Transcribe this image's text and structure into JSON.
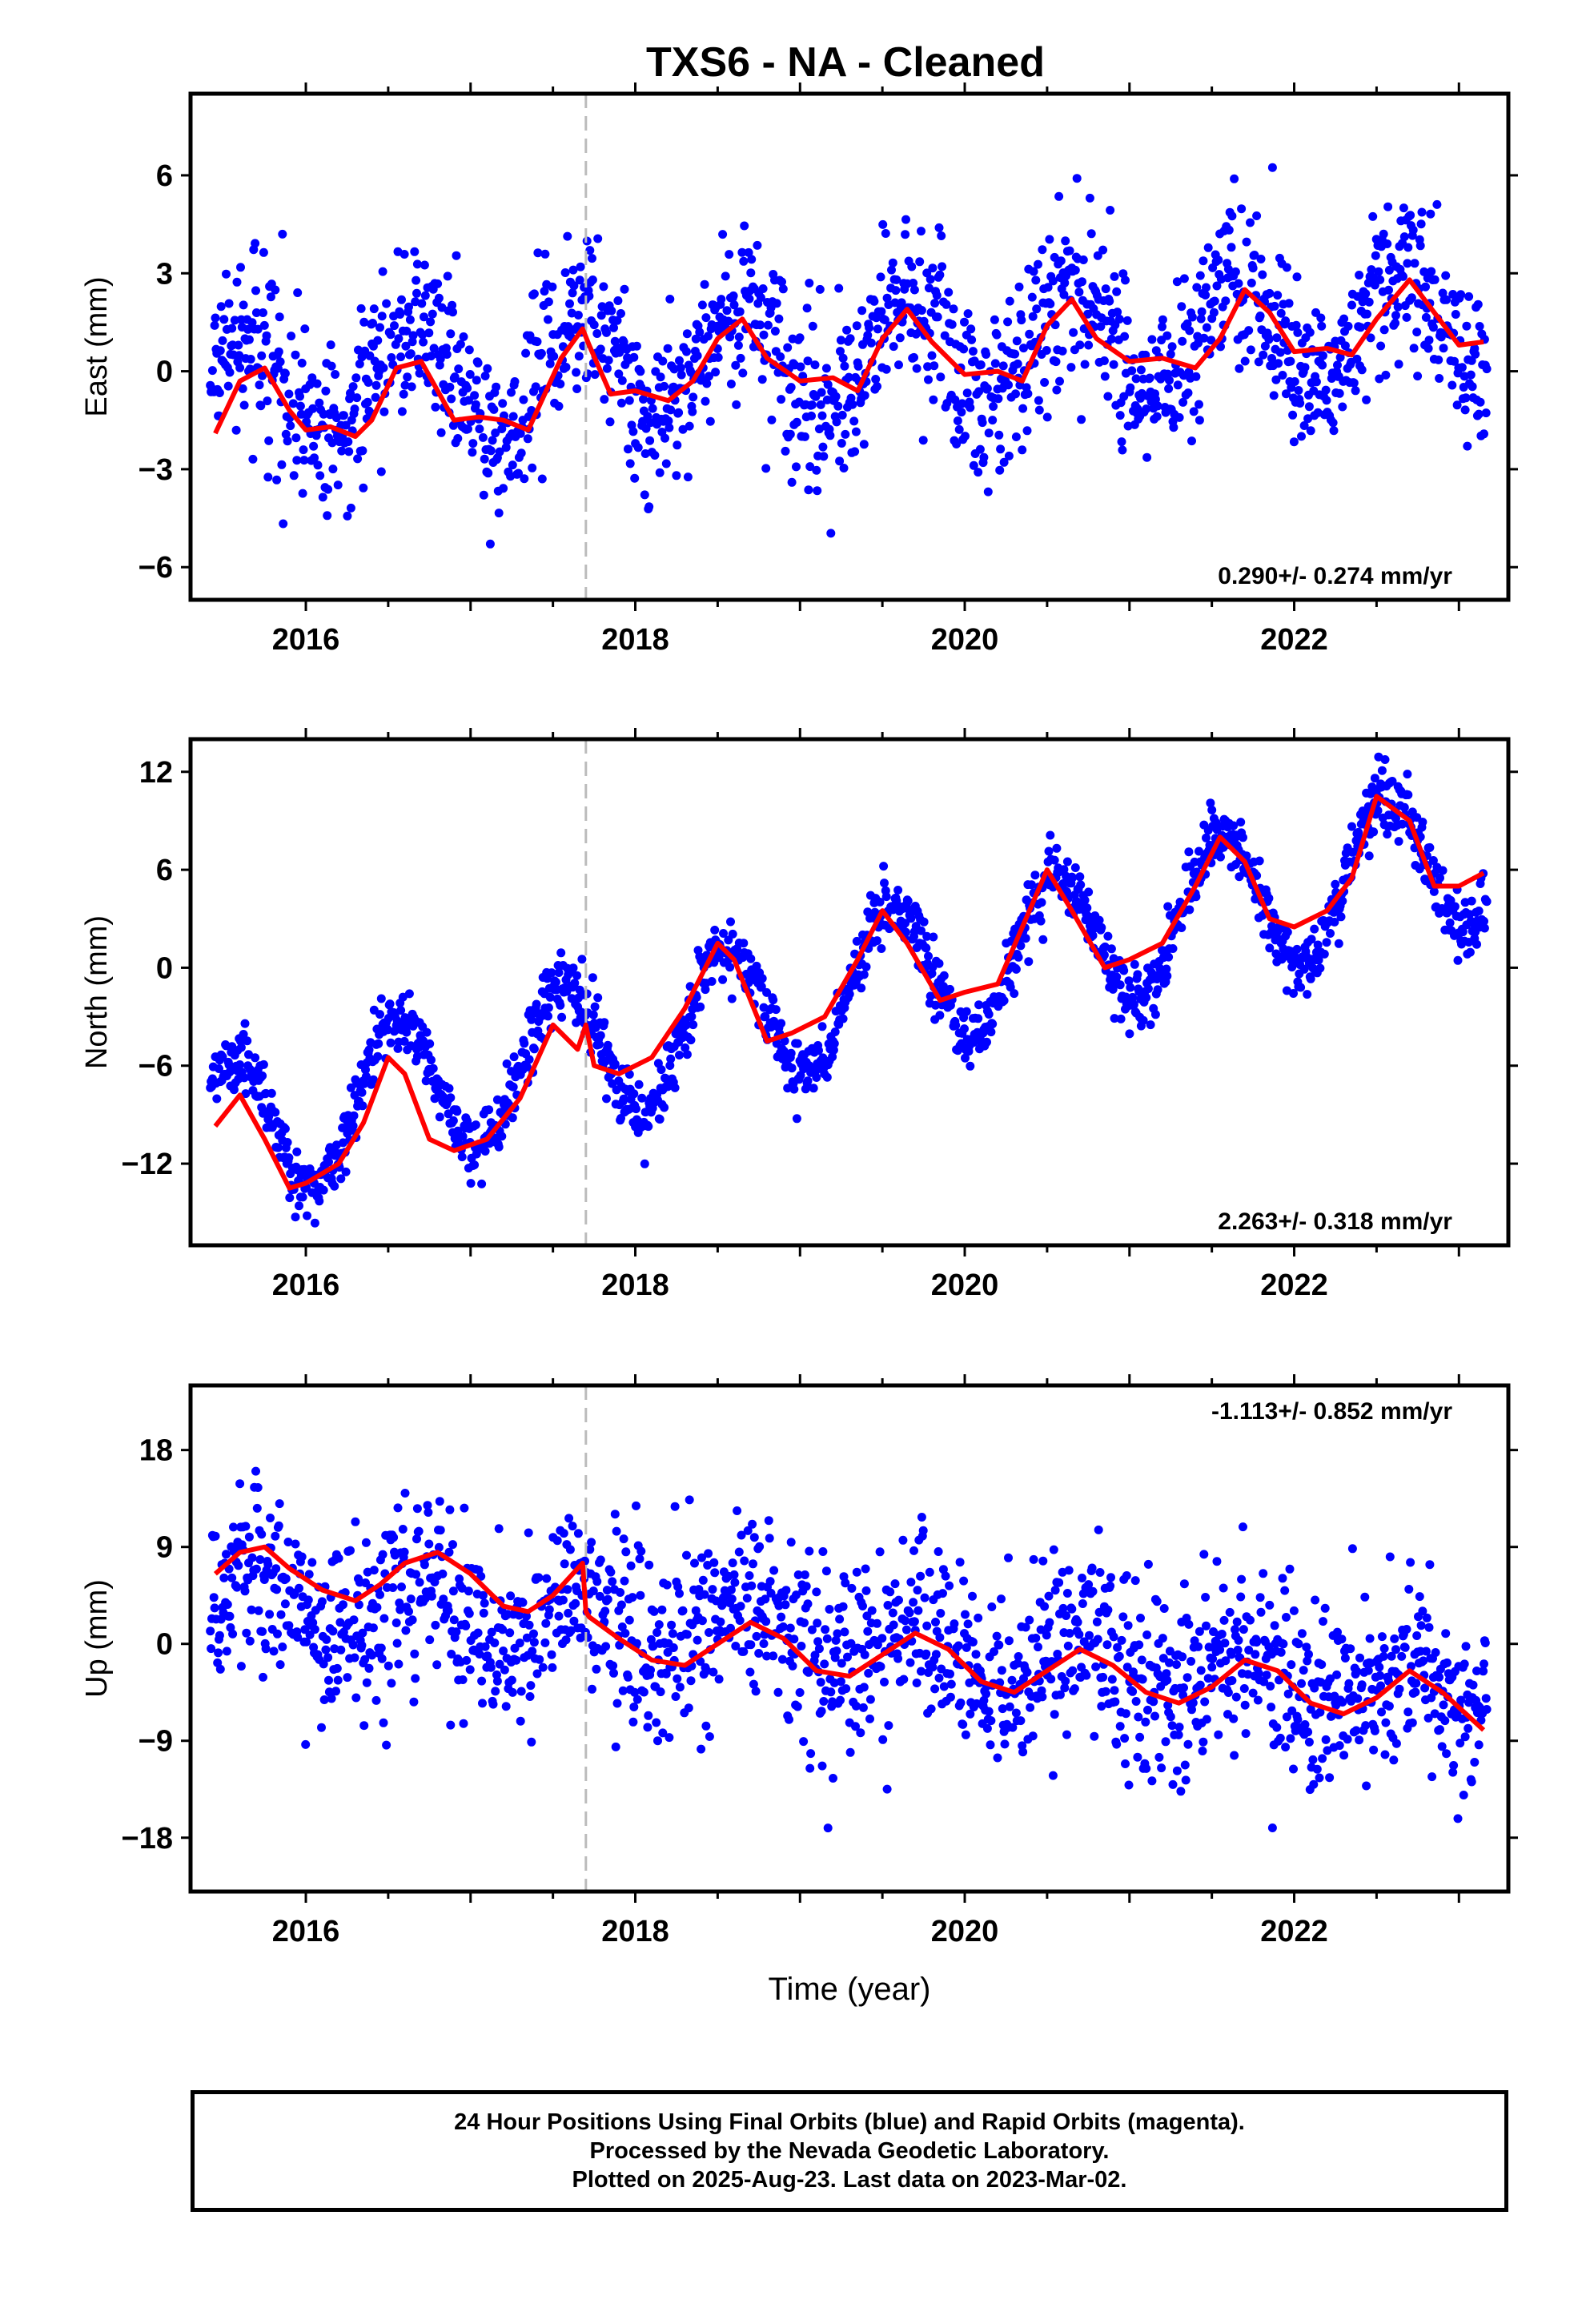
{
  "title": "TXS6  - NA - Cleaned",
  "chart_data": [
    {
      "type": "scatter",
      "component": "East",
      "ylabel": "East (mm)",
      "xlim": [
        2015.3,
        2023.3
      ],
      "ylim": [
        -7,
        8.5
      ],
      "yticks": [
        -6,
        -3,
        0,
        3,
        6
      ],
      "xticks": [
        2016,
        2018,
        2020,
        2022
      ],
      "equipment_change": 2017.7,
      "rate_label": "0.290+/- 0.274 mm/yr",
      "rate_position": "bottom-right",
      "model_curve": {
        "x": [
          2015.45,
          2015.6,
          2015.75,
          2015.9,
          2016.0,
          2016.15,
          2016.3,
          2016.4,
          2016.55,
          2016.7,
          2016.9,
          2017.05,
          2017.2,
          2017.35,
          2017.55,
          2017.68,
          2017.72,
          2017.85,
          2018.0,
          2018.2,
          2018.35,
          2018.5,
          2018.65,
          2018.8,
          2019.0,
          2019.2,
          2019.35,
          2019.5,
          2019.65,
          2019.8,
          2020.0,
          2020.2,
          2020.35,
          2020.5,
          2020.65,
          2020.8,
          2021.0,
          2021.2,
          2021.4,
          2021.55,
          2021.7,
          2021.85,
          2022.0,
          2022.2,
          2022.35,
          2022.5,
          2022.7,
          2022.85,
          2023.0,
          2023.15
        ],
        "y": [
          -1.9,
          -0.3,
          0.1,
          -1.2,
          -1.8,
          -1.7,
          -2.0,
          -1.5,
          0.1,
          0.3,
          -1.5,
          -1.4,
          -1.5,
          -1.8,
          0.4,
          1.3,
          0.8,
          -0.7,
          -0.6,
          -0.9,
          -0.3,
          1.0,
          1.6,
          0.4,
          -0.3,
          -0.2,
          -0.6,
          1.0,
          1.9,
          0.9,
          -0.1,
          0.0,
          -0.3,
          1.4,
          2.2,
          1.0,
          0.3,
          0.4,
          0.1,
          1.0,
          2.5,
          1.8,
          0.6,
          0.7,
          0.5,
          1.6,
          2.8,
          1.8,
          0.8,
          0.9
        ]
      },
      "scatter_model": {
        "trend_mm_per_yr": 0.29,
        "annual_amplitude": 1.6,
        "peak_year_fraction": 0.65,
        "noise_sd": 1.3,
        "start": 2015.42,
        "end": 2023.17,
        "step_days": 1.6,
        "x_origin": 2019.3,
        "y_offset": 0.5
      }
    },
    {
      "type": "scatter",
      "component": "North",
      "ylabel": "North (mm)",
      "xlim": [
        2015.3,
        2023.3
      ],
      "ylim": [
        -17,
        14
      ],
      "yticks": [
        -12,
        -6,
        0,
        6,
        12
      ],
      "xticks": [
        2016,
        2018,
        2020,
        2022
      ],
      "equipment_change": 2017.7,
      "rate_label": "2.263+/- 0.318 mm/yr",
      "rate_position": "bottom-right",
      "model_curve": {
        "x": [
          2015.45,
          2015.6,
          2015.75,
          2015.9,
          2016.0,
          2016.2,
          2016.35,
          2016.5,
          2016.6,
          2016.75,
          2016.9,
          2017.1,
          2017.3,
          2017.5,
          2017.65,
          2017.7,
          2017.75,
          2017.9,
          2018.1,
          2018.3,
          2018.5,
          2018.6,
          2018.8,
          2018.95,
          2019.15,
          2019.35,
          2019.5,
          2019.65,
          2019.85,
          2020.0,
          2020.2,
          2020.35,
          2020.5,
          2020.65,
          2020.85,
          2021.0,
          2021.2,
          2021.4,
          2021.55,
          2021.7,
          2021.85,
          2022.0,
          2022.2,
          2022.35,
          2022.5,
          2022.7,
          2022.85,
          2023.0,
          2023.15
        ],
        "y": [
          -9.7,
          -7.8,
          -10.5,
          -13.5,
          -13.2,
          -12.0,
          -9.5,
          -5.5,
          -6.5,
          -10.5,
          -11.2,
          -10.5,
          -8.0,
          -3.5,
          -5.0,
          -3.5,
          -6.0,
          -6.5,
          -5.5,
          -2.5,
          1.5,
          0.5,
          -4.5,
          -4.0,
          -3.0,
          0.5,
          3.5,
          1.5,
          -2.0,
          -1.5,
          -1.0,
          2.5,
          6.0,
          3.5,
          0.0,
          0.5,
          1.5,
          5.0,
          8.0,
          6.5,
          3.0,
          2.5,
          3.5,
          5.5,
          10.5,
          9.0,
          5.0,
          5.0,
          5.8
        ]
      },
      "scatter_model": {
        "trend_mm_per_yr": 2.263,
        "annual_amplitude": 4.5,
        "peak_year_fraction": 0.55,
        "noise_sd": 1.0,
        "start": 2015.42,
        "end": 2023.17,
        "step_days": 1.6,
        "x_origin": 2019.3,
        "y_offset": -1.5
      }
    },
    {
      "type": "scatter",
      "component": "Up",
      "ylabel": "Up (mm)",
      "xlim": [
        2015.3,
        2023.3
      ],
      "ylim": [
        -23,
        24
      ],
      "yticks": [
        -18,
        -9,
        0,
        9,
        18
      ],
      "xticks": [
        2016,
        2018,
        2020,
        2022
      ],
      "xlabel": "Time (year)",
      "equipment_change": 2017.7,
      "rate_label": "-1.113+/- 0.852 mm/yr",
      "rate_position": "top-right",
      "model_curve": {
        "x": [
          2015.45,
          2015.6,
          2015.75,
          2015.9,
          2016.1,
          2016.3,
          2016.45,
          2016.6,
          2016.8,
          2017.0,
          2017.2,
          2017.35,
          2017.5,
          2017.68,
          2017.7,
          2017.72,
          2017.9,
          2018.1,
          2018.3,
          2018.5,
          2018.7,
          2018.9,
          2019.1,
          2019.3,
          2019.5,
          2019.7,
          2019.9,
          2020.1,
          2020.3,
          2020.5,
          2020.7,
          2020.9,
          2021.1,
          2021.3,
          2021.5,
          2021.7,
          2021.9,
          2022.1,
          2022.3,
          2022.5,
          2022.7,
          2022.9,
          2023.15
        ],
        "y": [
          6.5,
          8.5,
          9.0,
          7.0,
          5.0,
          4.0,
          5.5,
          7.5,
          8.5,
          6.5,
          3.5,
          3.0,
          4.5,
          7.5,
          3.0,
          2.5,
          0.5,
          -1.5,
          -2.0,
          0.0,
          2.0,
          0.5,
          -2.5,
          -3.0,
          -1.0,
          1.0,
          -0.5,
          -3.5,
          -4.5,
          -2.5,
          -0.5,
          -2.0,
          -4.5,
          -5.5,
          -4.0,
          -1.5,
          -2.5,
          -5.5,
          -6.5,
          -5.0,
          -2.5,
          -4.5,
          -8.0
        ]
      },
      "scatter_model": {
        "trend_mm_per_yr": -1.113,
        "annual_amplitude": 2.5,
        "peak_year_fraction": 0.7,
        "noise_sd": 4.3,
        "start": 2015.42,
        "end": 2023.17,
        "step_days": 1.6,
        "x_origin": 2019.3,
        "y_offset": 0.0
      }
    }
  ],
  "footer": {
    "line1": "24 Hour Positions Using Final Orbits (blue) and Rapid Orbits (magenta).",
    "line2": "Processed by the Nevada Geodetic Laboratory.",
    "line3": "Plotted on 2025-Aug-23. Last data on 2023-Mar-02."
  },
  "colors": {
    "points": "#0000ff",
    "model": "#ff0000",
    "equipment_line": "#bbbbbb",
    "frame": "#000000"
  }
}
